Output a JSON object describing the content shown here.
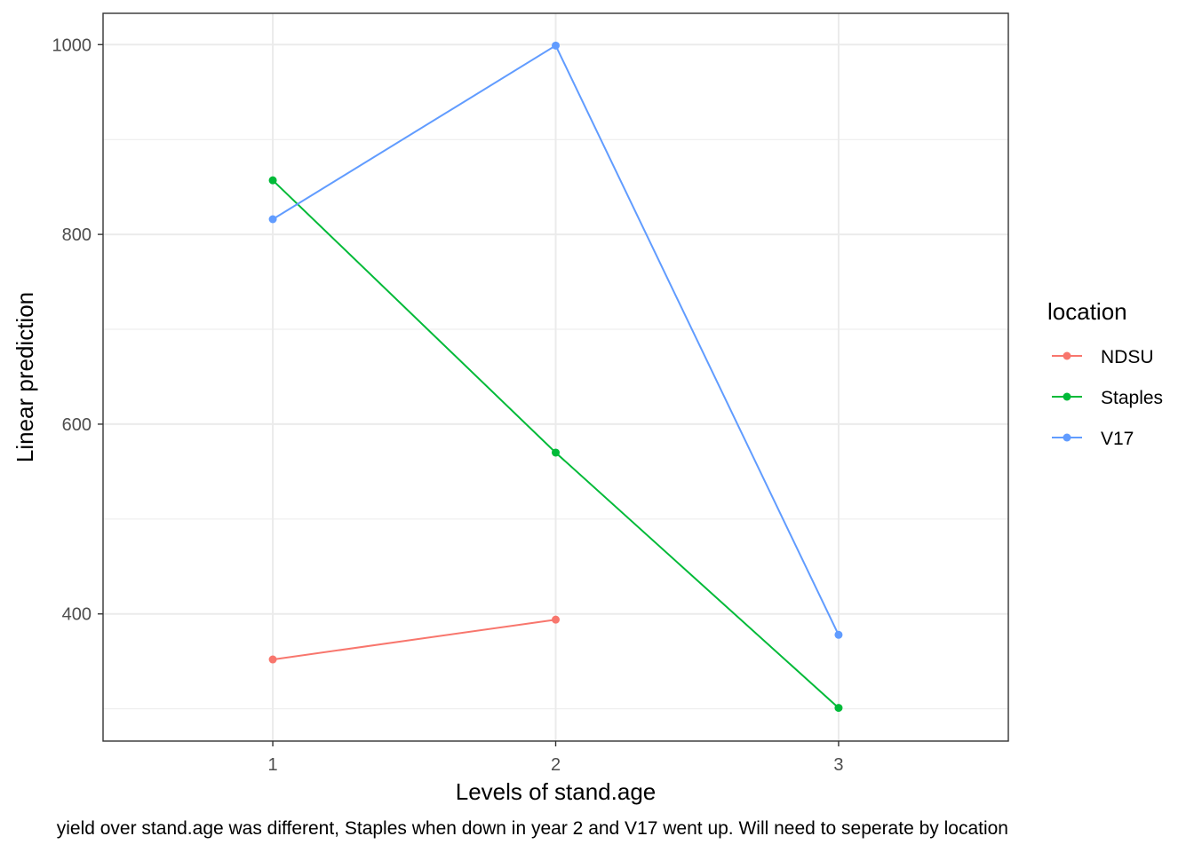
{
  "chart_data": {
    "type": "line",
    "xlabel": "Levels of stand.age",
    "ylabel": "Linear prediction",
    "caption": "yield over stand.age was different, Staples when down in year 2 and V17 went up. Will need to seperate by location",
    "x": [
      1,
      2,
      3
    ],
    "x_tick_labels": [
      "1",
      "2",
      "3"
    ],
    "xlim": [
      0.4,
      3.6
    ],
    "y_ticks": [
      400,
      600,
      800,
      1000
    ],
    "y_tick_labels": [
      "400",
      "600",
      "800",
      "1000"
    ],
    "ylim": [
      266,
      1033
    ],
    "grid": true,
    "legend": {
      "title": "location",
      "position": "right"
    },
    "series": [
      {
        "name": "NDSU",
        "color": "#F8766D",
        "x": [
          1,
          2
        ],
        "values": [
          352,
          394
        ]
      },
      {
        "name": "Staples",
        "color": "#00BA38",
        "x": [
          1,
          2,
          3
        ],
        "values": [
          857,
          570,
          301
        ]
      },
      {
        "name": "V17",
        "color": "#619CFF",
        "x": [
          1,
          2,
          3
        ],
        "values": [
          816,
          999,
          378
        ]
      }
    ]
  }
}
